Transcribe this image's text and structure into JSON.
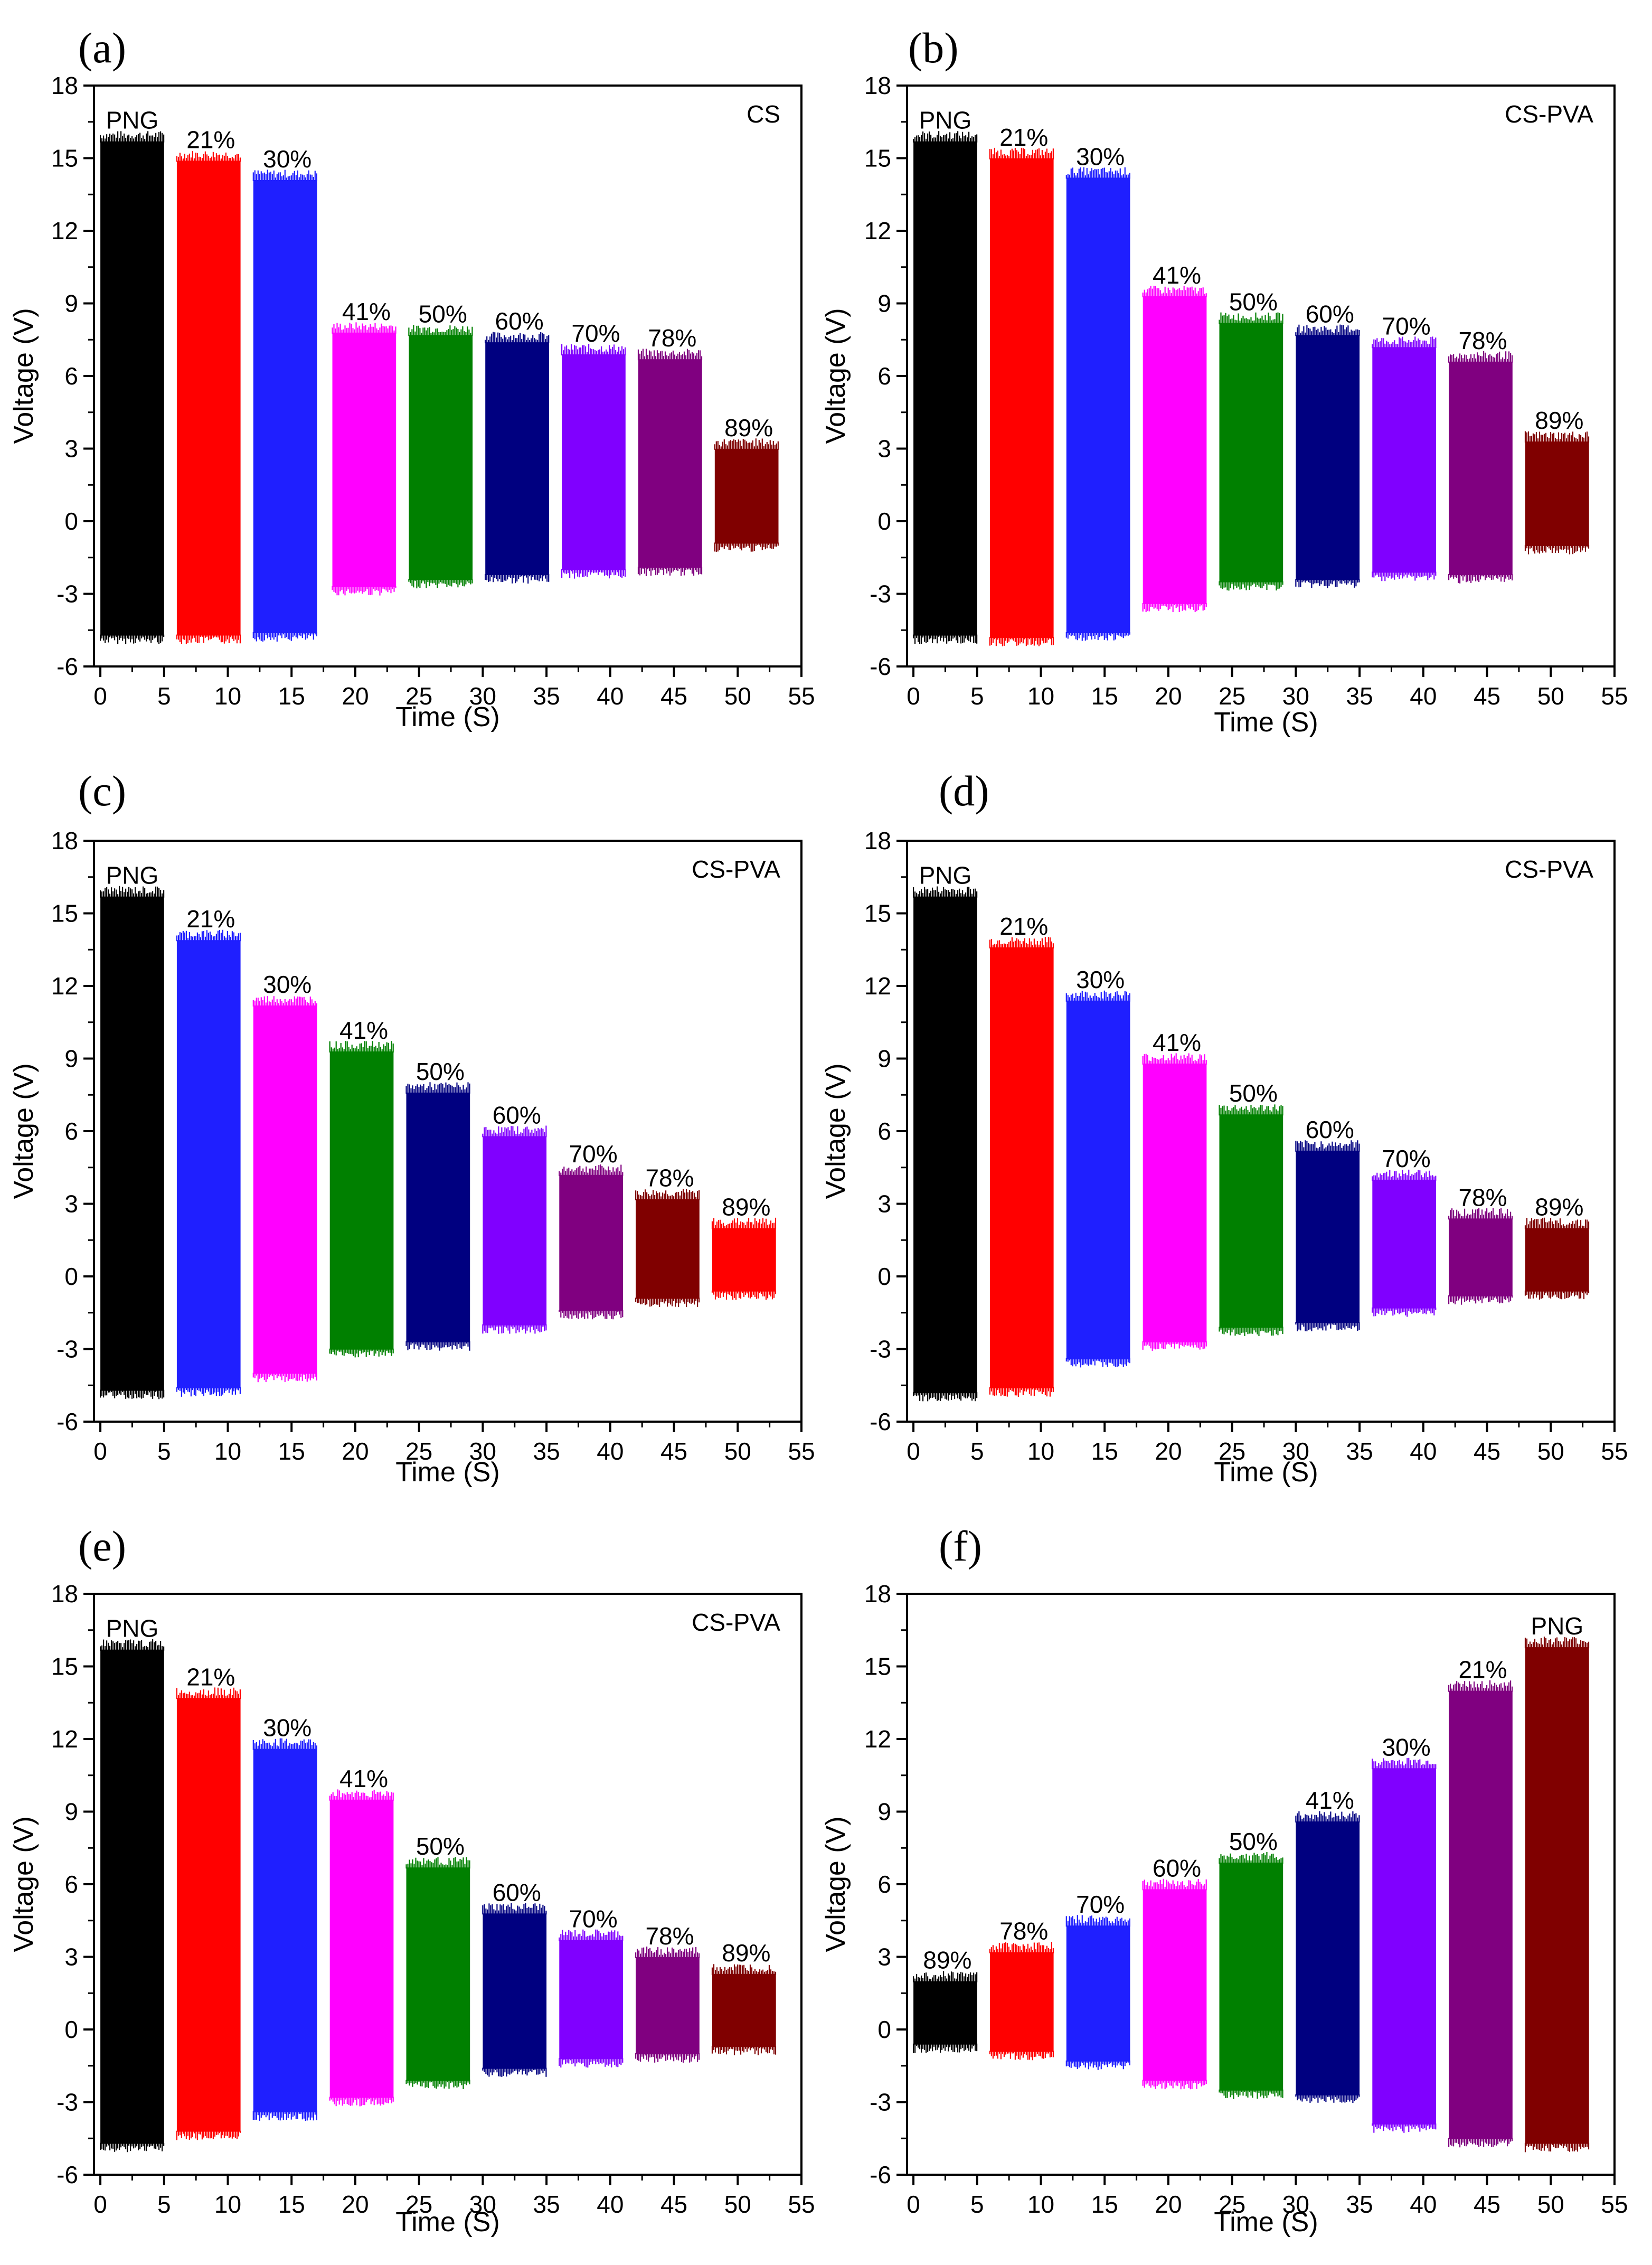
{
  "figure": {
    "background": "#ffffff",
    "axis_color": "#000000"
  },
  "chart_data": [
    {
      "panel": "(a)",
      "type": "bar",
      "title": "CS",
      "xlabel": "Time (S)",
      "ylabel": "Voltage (V)",
      "xlim": [
        -0.5,
        55
      ],
      "ylim": [
        -6,
        18
      ],
      "xticks": [
        0,
        5,
        10,
        15,
        20,
        25,
        30,
        35,
        40,
        45,
        50,
        55
      ],
      "yticks": [
        -6,
        -3,
        0,
        3,
        6,
        9,
        12,
        15,
        18
      ],
      "series": [
        {
          "name": "PNG",
          "x0": 0.0,
          "x1": 5.0,
          "max": 16.0,
          "min": -4.9,
          "color": "#000000"
        },
        {
          "name": "21%",
          "x0": 6.0,
          "x1": 11.0,
          "max": 15.2,
          "min": -4.9,
          "color": "#ff0000"
        },
        {
          "name": "30%",
          "x0": 12.0,
          "x1": 17.0,
          "max": 14.4,
          "min": -4.8,
          "color": "#1f1fff"
        },
        {
          "name": "41%",
          "x0": 18.2,
          "x1": 23.2,
          "max": 8.1,
          "min": -2.9,
          "color": "#ff00ff"
        },
        {
          "name": "50%",
          "x0": 24.2,
          "x1": 29.2,
          "max": 8.0,
          "min": -2.6,
          "color": "#008000"
        },
        {
          "name": "60%",
          "x0": 30.2,
          "x1": 35.2,
          "max": 7.7,
          "min": -2.4,
          "color": "#000080"
        },
        {
          "name": "70%",
          "x0": 36.2,
          "x1": 41.2,
          "max": 7.2,
          "min": -2.2,
          "color": "#8000ff"
        },
        {
          "name": "78%",
          "x0": 42.2,
          "x1": 47.2,
          "max": 7.0,
          "min": -2.1,
          "color": "#800080"
        },
        {
          "name": "89%",
          "x0": 48.2,
          "x1": 53.2,
          "max": 3.3,
          "min": -1.1,
          "color": "#800000"
        }
      ]
    },
    {
      "panel": "(b)",
      "type": "bar",
      "title": "CS-PVA",
      "xlabel": "Time (S)",
      "ylabel": "Voltage (V)",
      "xlim": [
        -0.5,
        55
      ],
      "ylim": [
        -6,
        18
      ],
      "xticks": [
        0,
        5,
        10,
        15,
        20,
        25,
        30,
        35,
        40,
        45,
        50,
        55
      ],
      "yticks": [
        -6,
        -3,
        0,
        3,
        6,
        9,
        12,
        15,
        18
      ],
      "series": [
        {
          "name": "PNG",
          "x0": 0.0,
          "x1": 5.0,
          "max": 16.0,
          "min": -4.9,
          "color": "#000000"
        },
        {
          "name": "21%",
          "x0": 6.0,
          "x1": 11.0,
          "max": 15.3,
          "min": -5.0,
          "color": "#ff0000"
        },
        {
          "name": "30%",
          "x0": 12.0,
          "x1": 17.0,
          "max": 14.5,
          "min": -4.8,
          "color": "#1f1fff"
        },
        {
          "name": "41%",
          "x0": 18.0,
          "x1": 23.0,
          "max": 9.6,
          "min": -3.6,
          "color": "#ff00ff"
        },
        {
          "name": "50%",
          "x0": 24.0,
          "x1": 29.0,
          "max": 8.5,
          "min": -2.7,
          "color": "#008000"
        },
        {
          "name": "60%",
          "x0": 30.0,
          "x1": 35.0,
          "max": 8.0,
          "min": -2.6,
          "color": "#000080"
        },
        {
          "name": "70%",
          "x0": 36.0,
          "x1": 41.0,
          "max": 7.5,
          "min": -2.3,
          "color": "#8000ff"
        },
        {
          "name": "78%",
          "x0": 42.0,
          "x1": 47.0,
          "max": 6.9,
          "min": -2.4,
          "color": "#800080"
        },
        {
          "name": "89%",
          "x0": 48.0,
          "x1": 53.0,
          "max": 3.6,
          "min": -1.2,
          "color": "#800000"
        }
      ]
    },
    {
      "panel": "(c)",
      "type": "bar",
      "title": "CS-PVA",
      "xlabel": "Time (S)",
      "ylabel": "Voltage (V)",
      "xlim": [
        -0.5,
        55
      ],
      "ylim": [
        -6,
        18
      ],
      "xticks": [
        0,
        5,
        10,
        15,
        20,
        25,
        30,
        35,
        40,
        45,
        50,
        55
      ],
      "yticks": [
        -6,
        -3,
        0,
        3,
        6,
        9,
        12,
        15,
        18
      ],
      "series": [
        {
          "name": "PNG",
          "x0": 0.0,
          "x1": 5.0,
          "max": 16.0,
          "min": -4.9,
          "color": "#000000"
        },
        {
          "name": "21%",
          "x0": 6.0,
          "x1": 11.0,
          "max": 14.2,
          "min": -4.8,
          "color": "#1f1fff"
        },
        {
          "name": "30%",
          "x0": 12.0,
          "x1": 17.0,
          "max": 11.5,
          "min": -4.2,
          "color": "#ff00ff"
        },
        {
          "name": "41%",
          "x0": 18.0,
          "x1": 23.0,
          "max": 9.6,
          "min": -3.2,
          "color": "#008000"
        },
        {
          "name": "50%",
          "x0": 24.0,
          "x1": 29.0,
          "max": 7.9,
          "min": -2.9,
          "color": "#000080"
        },
        {
          "name": "60%",
          "x0": 30.0,
          "x1": 35.0,
          "max": 6.1,
          "min": -2.2,
          "color": "#8000ff"
        },
        {
          "name": "70%",
          "x0": 36.0,
          "x1": 41.0,
          "max": 4.5,
          "min": -1.6,
          "color": "#800080"
        },
        {
          "name": "78%",
          "x0": 42.0,
          "x1": 47.0,
          "max": 3.5,
          "min": -1.1,
          "color": "#800000"
        },
        {
          "name": "89%",
          "x0": 48.0,
          "x1": 53.0,
          "max": 2.3,
          "min": -0.8,
          "color": "#ff0000"
        }
      ]
    },
    {
      "panel": "(d)",
      "type": "bar",
      "title": "CS-PVA",
      "xlabel": "Time (S)",
      "ylabel": "Voltage (V)",
      "xlim": [
        -0.5,
        55
      ],
      "ylim": [
        -6,
        18
      ],
      "xticks": [
        0,
        5,
        10,
        15,
        20,
        25,
        30,
        35,
        40,
        45,
        50,
        55
      ],
      "yticks": [
        -6,
        -3,
        0,
        3,
        6,
        9,
        12,
        15,
        18
      ],
      "series": [
        {
          "name": "PNG",
          "x0": 0.0,
          "x1": 5.0,
          "max": 16.0,
          "min": -5.0,
          "color": "#000000"
        },
        {
          "name": "21%",
          "x0": 6.0,
          "x1": 11.0,
          "max": 13.9,
          "min": -4.8,
          "color": "#ff0000"
        },
        {
          "name": "30%",
          "x0": 12.0,
          "x1": 17.0,
          "max": 11.7,
          "min": -3.6,
          "color": "#1f1fff"
        },
        {
          "name": "41%",
          "x0": 18.0,
          "x1": 23.0,
          "max": 9.1,
          "min": -2.9,
          "color": "#ff00ff"
        },
        {
          "name": "50%",
          "x0": 24.0,
          "x1": 29.0,
          "max": 7.0,
          "min": -2.3,
          "color": "#008000"
        },
        {
          "name": "60%",
          "x0": 30.0,
          "x1": 35.0,
          "max": 5.5,
          "min": -2.1,
          "color": "#000080"
        },
        {
          "name": "70%",
          "x0": 36.0,
          "x1": 41.0,
          "max": 4.3,
          "min": -1.5,
          "color": "#8000ff"
        },
        {
          "name": "78%",
          "x0": 42.0,
          "x1": 47.0,
          "max": 2.7,
          "min": -1.0,
          "color": "#800080"
        },
        {
          "name": "89%",
          "x0": 48.0,
          "x1": 53.0,
          "max": 2.3,
          "min": -0.8,
          "color": "#800000"
        }
      ]
    },
    {
      "panel": "(e)",
      "type": "bar",
      "title": "CS-PVA",
      "xlabel": "Time (S)",
      "ylabel": "Voltage (V)",
      "xlim": [
        -0.5,
        55
      ],
      "ylim": [
        -6,
        18
      ],
      "xticks": [
        0,
        5,
        10,
        15,
        20,
        25,
        30,
        35,
        40,
        45,
        50,
        55
      ],
      "yticks": [
        -6,
        -3,
        0,
        3,
        6,
        9,
        12,
        15,
        18
      ],
      "series": [
        {
          "name": "PNG",
          "x0": 0.0,
          "x1": 5.0,
          "max": 16.0,
          "min": -4.9,
          "color": "#000000"
        },
        {
          "name": "21%",
          "x0": 6.0,
          "x1": 11.0,
          "max": 14.0,
          "min": -4.4,
          "color": "#ff0000"
        },
        {
          "name": "30%",
          "x0": 12.0,
          "x1": 17.0,
          "max": 11.9,
          "min": -3.6,
          "color": "#1f1fff"
        },
        {
          "name": "41%",
          "x0": 18.0,
          "x1": 23.0,
          "max": 9.8,
          "min": -3.0,
          "color": "#ff00ff"
        },
        {
          "name": "50%",
          "x0": 24.0,
          "x1": 29.0,
          "max": 7.0,
          "min": -2.3,
          "color": "#008000"
        },
        {
          "name": "60%",
          "x0": 30.0,
          "x1": 35.0,
          "max": 5.1,
          "min": -1.8,
          "color": "#000080"
        },
        {
          "name": "70%",
          "x0": 36.0,
          "x1": 41.0,
          "max": 4.0,
          "min": -1.4,
          "color": "#8000ff"
        },
        {
          "name": "78%",
          "x0": 42.0,
          "x1": 47.0,
          "max": 3.3,
          "min": -1.2,
          "color": "#800080"
        },
        {
          "name": "89%",
          "x0": 48.0,
          "x1": 53.0,
          "max": 2.6,
          "min": -0.9,
          "color": "#800000"
        }
      ]
    },
    {
      "panel": "(f)",
      "type": "bar",
      "title": "",
      "xlabel": "Time (S)",
      "ylabel": "Voltage (V)",
      "xlim": [
        -0.5,
        55
      ],
      "ylim": [
        -6,
        18
      ],
      "xticks": [
        0,
        5,
        10,
        15,
        20,
        25,
        30,
        35,
        40,
        45,
        50,
        55
      ],
      "yticks": [
        -6,
        -3,
        0,
        3,
        6,
        9,
        12,
        15,
        18
      ],
      "series": [
        {
          "name": "89%",
          "x0": 0.0,
          "x1": 5.0,
          "max": 2.3,
          "min": -0.8,
          "color": "#000000"
        },
        {
          "name": "78%",
          "x0": 6.0,
          "x1": 11.0,
          "max": 3.5,
          "min": -1.1,
          "color": "#ff0000"
        },
        {
          "name": "70%",
          "x0": 12.0,
          "x1": 17.0,
          "max": 4.6,
          "min": -1.5,
          "color": "#1f1fff"
        },
        {
          "name": "60%",
          "x0": 18.0,
          "x1": 23.0,
          "max": 6.1,
          "min": -2.3,
          "color": "#ff00ff"
        },
        {
          "name": "50%",
          "x0": 24.0,
          "x1": 29.0,
          "max": 7.2,
          "min": -2.7,
          "color": "#008000"
        },
        {
          "name": "41%",
          "x0": 30.0,
          "x1": 35.0,
          "max": 8.9,
          "min": -2.9,
          "color": "#000080"
        },
        {
          "name": "30%",
          "x0": 36.0,
          "x1": 41.0,
          "max": 11.1,
          "min": -4.1,
          "color": "#8000ff"
        },
        {
          "name": "21%",
          "x0": 42.0,
          "x1": 47.0,
          "max": 14.3,
          "min": -4.7,
          "color": "#800080"
        },
        {
          "name": "PNG",
          "x0": 48.0,
          "x1": 53.0,
          "max": 16.1,
          "min": -4.9,
          "color": "#800000"
        }
      ]
    }
  ]
}
